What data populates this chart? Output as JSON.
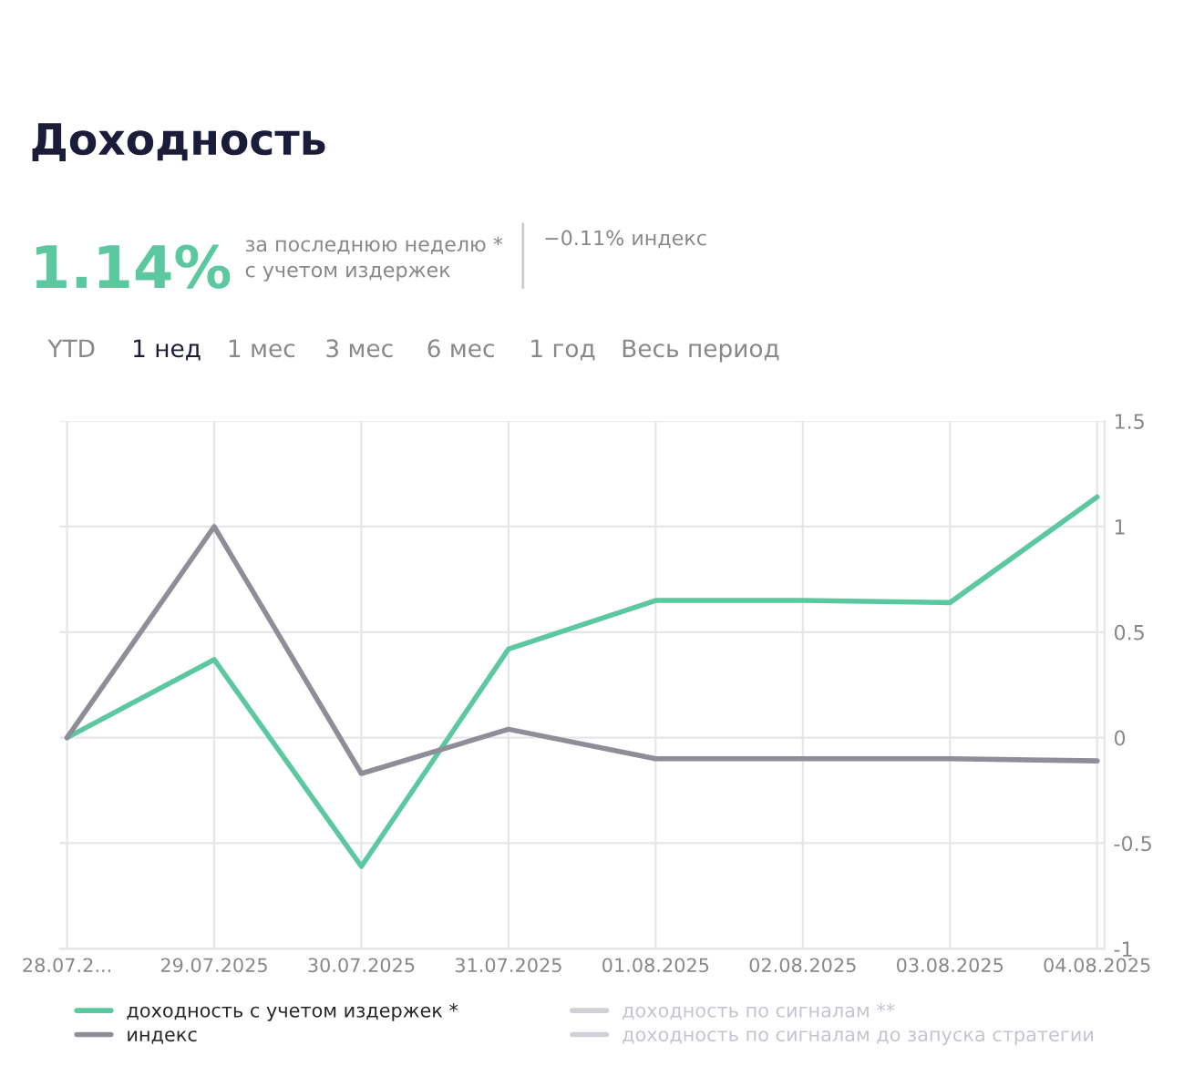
{
  "chart_data": {
    "type": "line",
    "title": "Доходность",
    "annotations": [
      "1.14%",
      "за последнюю неделю *\nс учетом издержек",
      "−0.11% индекс",
      "YTD",
      "1 нед",
      "1 мес",
      "3 мес",
      "6 мес",
      "1 год",
      "Весь период"
    ],
    "categories": [
      "28.07.2...",
      "29.07.2025",
      "30.07.2025",
      "31.07.2025",
      "01.08.2025",
      "02.08.2025",
      "03.08.2025",
      "04.08.2025"
    ],
    "series": [
      {
        "name": "доходность с учетом издержек *",
        "color": "#5cc8a0",
        "values": [
          0,
          0.37,
          -0.61,
          0.42,
          0.65,
          0.65,
          0.64,
          1.14
        ]
      },
      {
        "name": "индекс",
        "color": "#8e8e99",
        "values": [
          0,
          1.0,
          -0.17,
          0.04,
          -0.1,
          -0.1,
          -0.1,
          -0.11
        ]
      },
      {
        "name": "доходность по сигналам **",
        "color": "#d0d0d6",
        "values": [
          null,
          null,
          null,
          null,
          null,
          null,
          null,
          null
        ]
      },
      {
        "name": "доходность по сигналам до запуска стратегии",
        "color": "#d0d0d6",
        "values": [
          null,
          null,
          null,
          null,
          null,
          null,
          null,
          null
        ]
      }
    ],
    "ylim": [
      -1,
      1.5
    ],
    "yticks": [
      {
        "value": 1.5,
        "label": "1.5"
      },
      {
        "value": 1,
        "label": "1"
      },
      {
        "value": 0.5,
        "label": "0.5"
      },
      {
        "value": 0,
        "label": "0"
      },
      {
        "value": -0.5,
        "label": "-0.5"
      },
      {
        "value": -1,
        "label": "-1"
      }
    ],
    "grid": true,
    "legend": "bottom",
    "marker": "none",
    "line_style": "solid"
  }
}
